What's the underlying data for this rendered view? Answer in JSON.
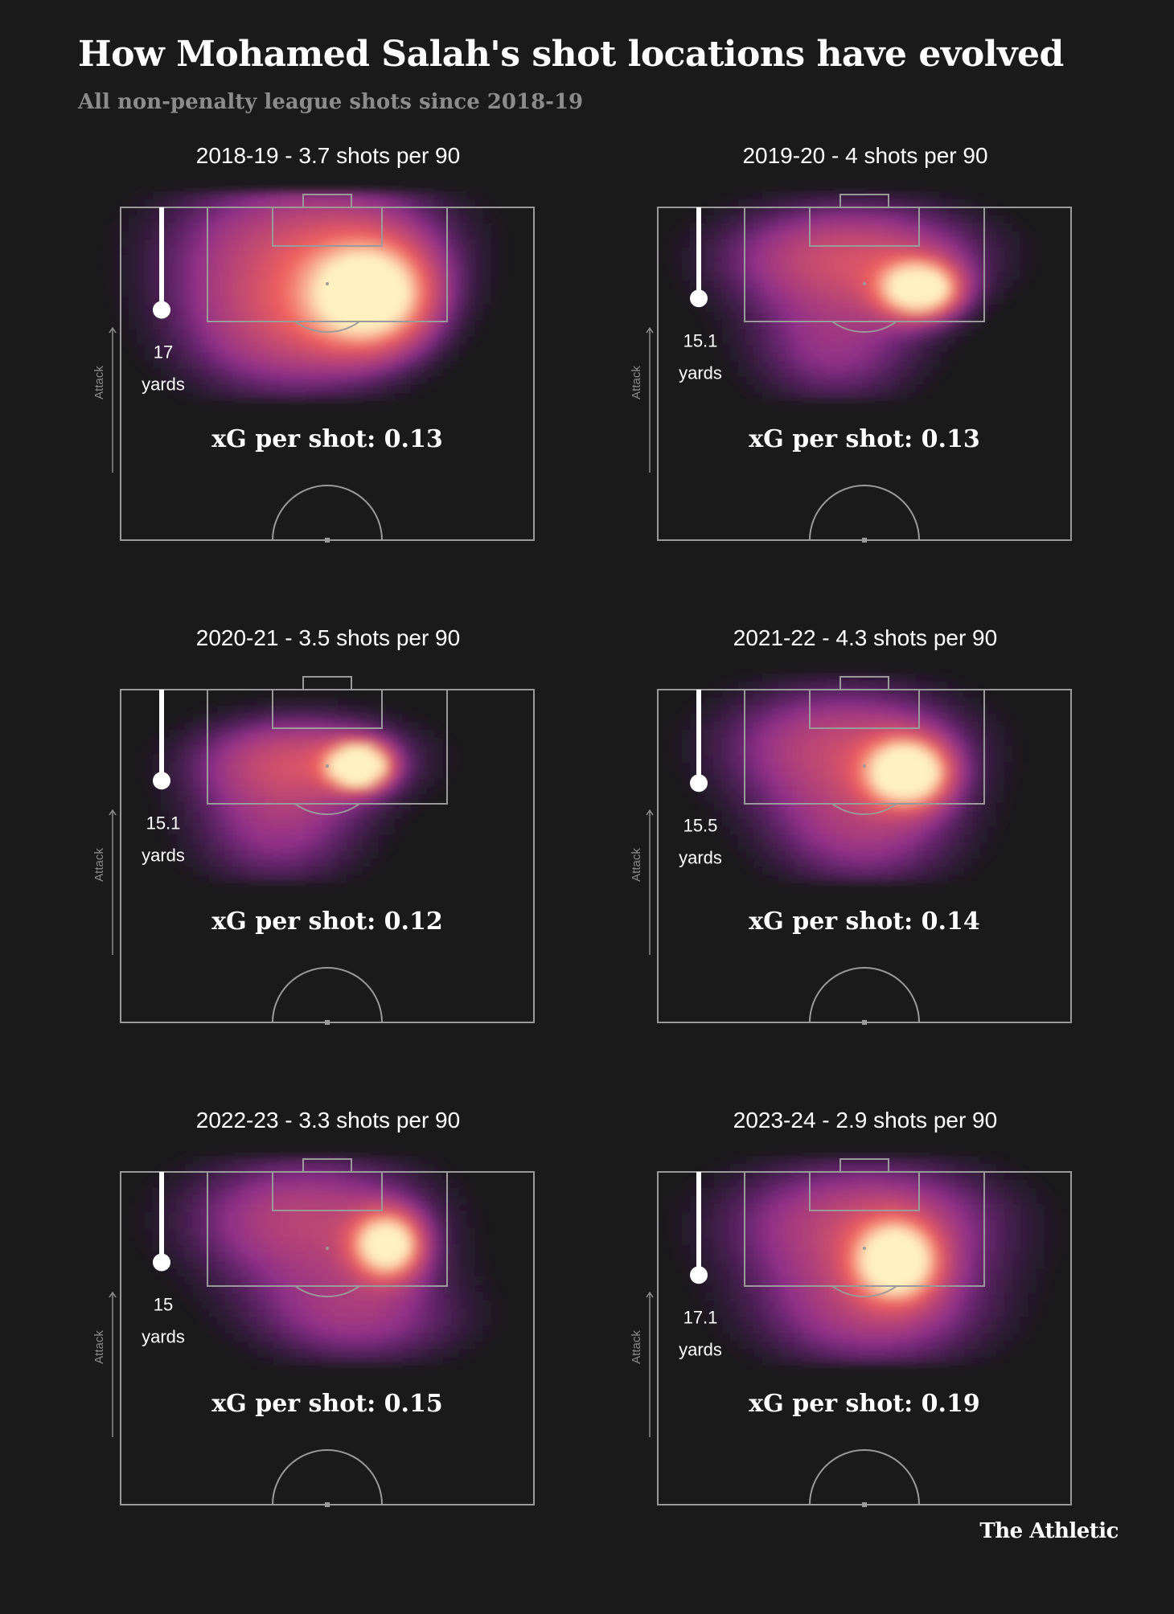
{
  "header": {
    "title": "How Mohamed Salah's shot locations have evolved",
    "subtitle": "All non-penalty league shots since 2018-19"
  },
  "brand": "The Athletic",
  "colors": {
    "background": "#1a1a1a",
    "pitch_lines": "#9a9a9a",
    "heat_low": "#2b0d5c",
    "heat_mid": "#8a2d8a",
    "heat_high": "#f0605d",
    "heat_peak": "#fff2c0"
  },
  "chart_data": [
    {
      "type": "heatmap",
      "title": "2018-19 - 3.7 shots per 90",
      "season": "2018-19",
      "shots_per_90": 3.7,
      "avg_shot_distance_yards": 17,
      "distance_value_label": "17",
      "distance_unit_label": "yards",
      "attack_label": "Attack",
      "xg_label": "xG per shot: 0.13",
      "xg_per_shot": 0.13,
      "hotspots": [
        {
          "x": 0.45,
          "y": 0.1,
          "sx": 0.28,
          "sy": 0.18,
          "w": 0.55
        },
        {
          "x": 0.62,
          "y": 0.27,
          "sx": 0.11,
          "sy": 0.12,
          "w": 0.75
        },
        {
          "x": 0.4,
          "y": 0.4,
          "sx": 0.22,
          "sy": 0.16,
          "w": 0.45
        }
      ]
    },
    {
      "type": "heatmap",
      "title": "2019-20 - 4 shots per 90",
      "season": "2019-20",
      "shots_per_90": 4,
      "avg_shot_distance_yards": 15.1,
      "distance_value_label": "15.1",
      "distance_unit_label": "yards",
      "attack_label": "Attack",
      "xg_label": "xG per shot: 0.13",
      "xg_per_shot": 0.13,
      "hotspots": [
        {
          "x": 0.47,
          "y": 0.14,
          "sx": 0.26,
          "sy": 0.13,
          "w": 0.6
        },
        {
          "x": 0.64,
          "y": 0.25,
          "sx": 0.07,
          "sy": 0.06,
          "w": 0.85
        },
        {
          "x": 0.43,
          "y": 0.44,
          "sx": 0.18,
          "sy": 0.14,
          "w": 0.4
        }
      ]
    },
    {
      "type": "heatmap",
      "title": "2020-21 - 3.5 shots per 90",
      "season": "2020-21",
      "shots_per_90": 3.5,
      "avg_shot_distance_yards": 15.1,
      "distance_value_label": "15.1",
      "distance_unit_label": "yards",
      "attack_label": "Attack",
      "xg_label": "xG per shot: 0.12",
      "xg_per_shot": 0.12,
      "hotspots": [
        {
          "x": 0.44,
          "y": 0.2,
          "sx": 0.22,
          "sy": 0.11,
          "w": 0.55
        },
        {
          "x": 0.58,
          "y": 0.23,
          "sx": 0.05,
          "sy": 0.045,
          "w": 1.0
        },
        {
          "x": 0.38,
          "y": 0.44,
          "sx": 0.18,
          "sy": 0.14,
          "w": 0.4
        }
      ]
    },
    {
      "type": "heatmap",
      "title": "2021-22 - 4.3 shots per 90",
      "season": "2021-22",
      "shots_per_90": 4.3,
      "avg_shot_distance_yards": 15.5,
      "distance_value_label": "15.5",
      "distance_unit_label": "yards",
      "attack_label": "Attack",
      "xg_label": "xG per shot: 0.14",
      "xg_per_shot": 0.14,
      "hotspots": [
        {
          "x": 0.45,
          "y": 0.16,
          "sx": 0.25,
          "sy": 0.15,
          "w": 0.55
        },
        {
          "x": 0.61,
          "y": 0.25,
          "sx": 0.07,
          "sy": 0.07,
          "w": 0.85
        },
        {
          "x": 0.5,
          "y": 0.45,
          "sx": 0.2,
          "sy": 0.14,
          "w": 0.4
        }
      ]
    },
    {
      "type": "heatmap",
      "title": "2022-23 - 3.3 shots per 90",
      "season": "2022-23",
      "shots_per_90": 3.3,
      "avg_shot_distance_yards": 15,
      "distance_value_label": "15",
      "distance_unit_label": "yards",
      "attack_label": "Attack",
      "xg_label": "xG per shot: 0.15",
      "xg_per_shot": 0.15,
      "hotspots": [
        {
          "x": 0.45,
          "y": 0.14,
          "sx": 0.25,
          "sy": 0.16,
          "w": 0.55
        },
        {
          "x": 0.65,
          "y": 0.22,
          "sx": 0.06,
          "sy": 0.07,
          "w": 0.8
        },
        {
          "x": 0.58,
          "y": 0.45,
          "sx": 0.22,
          "sy": 0.12,
          "w": 0.4
        }
      ]
    },
    {
      "type": "heatmap",
      "title": "2023-24 - 2.9 shots per 90",
      "season": "2023-24",
      "shots_per_90": 2.9,
      "avg_shot_distance_yards": 17.1,
      "distance_value_label": "17.1",
      "distance_unit_label": "yards",
      "attack_label": "Attack",
      "xg_label": "xG per shot: 0.19",
      "xg_per_shot": 0.19,
      "hotspots": [
        {
          "x": 0.5,
          "y": 0.14,
          "sx": 0.28,
          "sy": 0.15,
          "w": 0.55
        },
        {
          "x": 0.58,
          "y": 0.27,
          "sx": 0.07,
          "sy": 0.08,
          "w": 0.75
        },
        {
          "x": 0.52,
          "y": 0.44,
          "sx": 0.24,
          "sy": 0.14,
          "w": 0.45
        }
      ]
    }
  ]
}
